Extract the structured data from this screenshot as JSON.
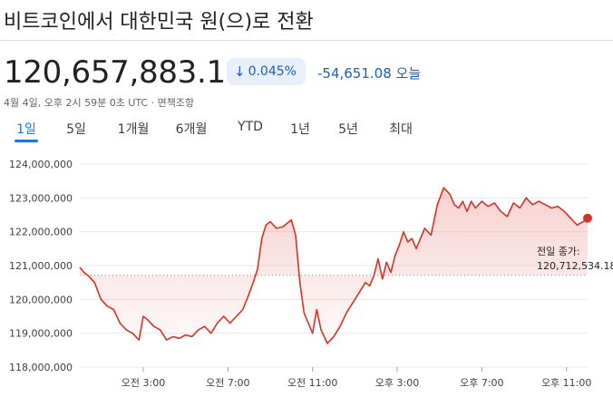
{
  "header": {
    "title": "비트코인에서 대한민국 원(으)로 전환",
    "price": "120,657,883.10",
    "change_percent": "0.045%",
    "change_arrow_icon": "arrow-down-icon",
    "change_value": "-54,651.08",
    "change_period": "오늘",
    "timestamp": "4월 4일, 오후 2시 59분 0초 UTC · 면책조항",
    "accent_color": "#1a73e8",
    "negative_color": "#d93025"
  },
  "tabs": [
    {
      "label": "1일",
      "active": true
    },
    {
      "label": "5일",
      "active": false
    },
    {
      "label": "1개월",
      "active": false
    },
    {
      "label": "6개월",
      "active": false
    },
    {
      "label": "YTD",
      "active": false
    },
    {
      "label": "1년",
      "active": false
    },
    {
      "label": "5년",
      "active": false
    },
    {
      "label": "최대",
      "active": false
    }
  ],
  "prev_close": {
    "label": "전일 종가:",
    "value_text": "120,712,534.18",
    "value": 120712534.18
  },
  "chart_data": {
    "type": "area",
    "y_ticks": [
      "124,000,000",
      "123,000,000",
      "122,000,000",
      "121,000,000",
      "120,000,000",
      "119,000,000",
      "118,000,000"
    ],
    "ylim": [
      118000000,
      124000000
    ],
    "x_ticks": [
      "오전 3:00",
      "오전 7:00",
      "오전 11:00",
      "오후 3:00",
      "오후 7:00",
      "오후 11:00"
    ],
    "x_tick_hours": [
      3,
      7,
      11,
      15,
      19,
      23
    ],
    "xlim_hours": [
      0,
      24
    ],
    "grid": true,
    "series": [
      {
        "color": "#d93025",
        "x_hours": [
          0.0,
          0.2,
          0.4,
          0.7,
          1.0,
          1.3,
          1.6,
          1.9,
          2.2,
          2.5,
          2.8,
          3.0,
          3.2,
          3.5,
          3.8,
          4.1,
          4.4,
          4.7,
          5.0,
          5.3,
          5.6,
          5.9,
          6.2,
          6.5,
          6.8,
          7.1,
          7.4,
          7.7,
          7.9,
          8.2,
          8.4,
          8.6,
          8.8,
          9.0,
          9.3,
          9.6,
          9.8,
          10.0,
          10.2,
          10.4,
          10.6,
          10.8,
          11.0,
          11.2,
          11.4,
          11.7,
          12.0,
          12.3,
          12.6,
          12.9,
          13.2,
          13.5,
          13.7,
          13.9,
          14.1,
          14.3,
          14.5,
          14.7,
          14.9,
          15.1,
          15.3,
          15.5,
          15.7,
          15.9,
          16.1,
          16.3,
          16.6,
          16.9,
          17.2,
          17.5,
          17.7,
          17.9,
          18.1,
          18.3,
          18.5,
          18.7,
          19.0,
          19.3,
          19.6,
          19.9,
          20.2,
          20.5,
          20.8,
          21.1,
          21.4,
          21.7,
          22.0,
          22.3,
          22.6,
          22.9,
          23.2,
          23.5,
          23.8,
          24.0
        ],
        "values": [
          120950000,
          120800000,
          120700000,
          120500000,
          120000000,
          119800000,
          119700000,
          119300000,
          119100000,
          119000000,
          118800000,
          119500000,
          119400000,
          119200000,
          119100000,
          118800000,
          118900000,
          118850000,
          118950000,
          118900000,
          119100000,
          119200000,
          119000000,
          119300000,
          119500000,
          119300000,
          119500000,
          119700000,
          120000000,
          120500000,
          120900000,
          121800000,
          122200000,
          122300000,
          122100000,
          122150000,
          122250000,
          122350000,
          121900000,
          120500000,
          119600000,
          119300000,
          119000000,
          119700000,
          119100000,
          118700000,
          118900000,
          119200000,
          119600000,
          119900000,
          120200000,
          120500000,
          120400000,
          120700000,
          121200000,
          120600000,
          121100000,
          120800000,
          121300000,
          121600000,
          122000000,
          121700000,
          121800000,
          121500000,
          121800000,
          122100000,
          121900000,
          122800000,
          123300000,
          123100000,
          122800000,
          122700000,
          122900000,
          122600000,
          122900000,
          122700000,
          122900000,
          122750000,
          122850000,
          122600000,
          122450000,
          122850000,
          122700000,
          123000000,
          122800000,
          122900000,
          122800000,
          122700000,
          122750000,
          122600000,
          122400000,
          122200000,
          122300000,
          122400000
        ]
      }
    ]
  }
}
